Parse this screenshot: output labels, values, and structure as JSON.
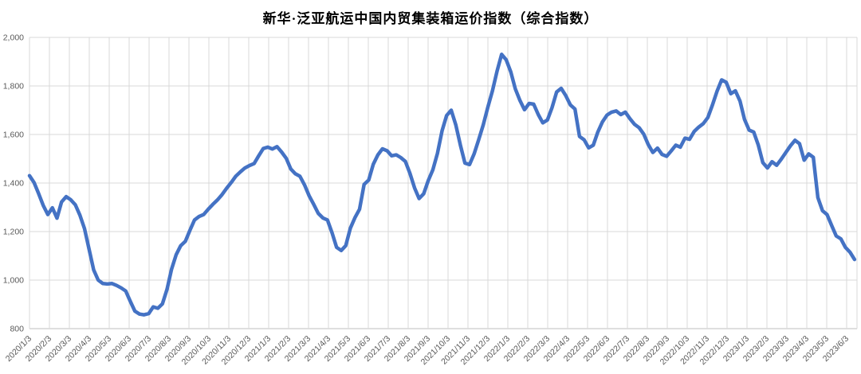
{
  "title": "新华·泛亚航运中国内贸集装箱运价指数（综合指数）",
  "style": {
    "line_color": "#4472C4",
    "grid_color": "#d9d9d9",
    "axis_color": "#bfbfbf",
    "tick_label_color": "#595959",
    "background": "#ffffff"
  },
  "chart_data": {
    "type": "line",
    "title": "新华·泛亚航运中国内贸集装箱运价指数（综合指数）",
    "xlabel": "",
    "ylabel": "",
    "ylim": [
      800,
      2000
    ],
    "grid": true,
    "legend_position": "none",
    "y_axis": {
      "values": [
        800,
        1000,
        1200,
        1400,
        1600,
        1800,
        2000
      ],
      "labels": [
        "800",
        "1,000",
        "1,200",
        "1,400",
        "1,600",
        "1,800",
        "2,000"
      ]
    },
    "x_axis": {
      "start_date": "2020/1/3",
      "labels": [
        "2020/1/3",
        "2020/2/3",
        "2020/3/3",
        "2020/4/3",
        "2020/5/3",
        "2020/6/3",
        "2020/7/3",
        "2020/8/3",
        "2020/9/3",
        "2020/10/3",
        "2020/11/3",
        "2020/12/3",
        "2021/1/3",
        "2021/2/3",
        "2021/3/3",
        "2021/4/3",
        "2021/5/3",
        "2021/6/3",
        "2021/7/3",
        "2021/8/3",
        "2021/9/3",
        "2021/10/3",
        "2021/11/3",
        "2021/12/3",
        "2022/1/3",
        "2022/2/3",
        "2022/3/3",
        "2022/4/3",
        "2022/5/3",
        "2022/6/3",
        "2022/7/3",
        "2022/8/3",
        "2022/9/3",
        "2022/10/3",
        "2022/11/3",
        "2022/12/3",
        "2023/1/3",
        "2023/2/3",
        "2023/3/3",
        "2023/4/3",
        "2023/5/3",
        "2023/6/3"
      ]
    },
    "series": [
      {
        "name": "综合指数",
        "color": "#4472C4",
        "points": [
          [
            "2020/1/3",
            1430
          ],
          [
            "2020/1/10",
            1402
          ],
          [
            "2020/1/17",
            1356
          ],
          [
            "2020/1/24",
            1308
          ],
          [
            "2020/1/31",
            1270
          ],
          [
            "2020/2/7",
            1298
          ],
          [
            "2020/2/14",
            1255
          ],
          [
            "2020/2/21",
            1322
          ],
          [
            "2020/2/28",
            1344
          ],
          [
            "2020/3/6",
            1331
          ],
          [
            "2020/3/13",
            1310
          ],
          [
            "2020/3/20",
            1268
          ],
          [
            "2020/3/27",
            1212
          ],
          [
            "2020/4/3",
            1128
          ],
          [
            "2020/4/10",
            1042
          ],
          [
            "2020/4/17",
            1000
          ],
          [
            "2020/4/24",
            986
          ],
          [
            "2020/5/1",
            984
          ],
          [
            "2020/5/8",
            986
          ],
          [
            "2020/5/15",
            978
          ],
          [
            "2020/5/22",
            968
          ],
          [
            "2020/5/29",
            955
          ],
          [
            "2020/6/5",
            912
          ],
          [
            "2020/6/12",
            872
          ],
          [
            "2020/6/19",
            860
          ],
          [
            "2020/6/26",
            857
          ],
          [
            "2020/7/3",
            862
          ],
          [
            "2020/7/10",
            890
          ],
          [
            "2020/7/17",
            884
          ],
          [
            "2020/7/24",
            902
          ],
          [
            "2020/7/31",
            962
          ],
          [
            "2020/8/7",
            1045
          ],
          [
            "2020/8/14",
            1105
          ],
          [
            "2020/8/21",
            1142
          ],
          [
            "2020/8/28",
            1160
          ],
          [
            "2020/9/4",
            1205
          ],
          [
            "2020/9/11",
            1248
          ],
          [
            "2020/9/18",
            1262
          ],
          [
            "2020/9/25",
            1270
          ],
          [
            "2020/10/2",
            1292
          ],
          [
            "2020/10/9",
            1312
          ],
          [
            "2020/10/16",
            1330
          ],
          [
            "2020/10/23",
            1352
          ],
          [
            "2020/10/30",
            1378
          ],
          [
            "2020/11/6",
            1402
          ],
          [
            "2020/11/13",
            1428
          ],
          [
            "2020/11/20",
            1446
          ],
          [
            "2020/11/27",
            1462
          ],
          [
            "2020/12/4",
            1472
          ],
          [
            "2020/12/11",
            1480
          ],
          [
            "2020/12/18",
            1512
          ],
          [
            "2020/12/25",
            1542
          ],
          [
            "2021/1/1",
            1548
          ],
          [
            "2021/1/8",
            1540
          ],
          [
            "2021/1/15",
            1550
          ],
          [
            "2021/1/22",
            1528
          ],
          [
            "2021/1/29",
            1502
          ],
          [
            "2021/2/5",
            1458
          ],
          [
            "2021/2/12",
            1438
          ],
          [
            "2021/2/19",
            1428
          ],
          [
            "2021/2/26",
            1392
          ],
          [
            "2021/3/5",
            1348
          ],
          [
            "2021/3/12",
            1312
          ],
          [
            "2021/3/19",
            1275
          ],
          [
            "2021/3/26",
            1256
          ],
          [
            "2021/4/2",
            1248
          ],
          [
            "2021/4/9",
            1195
          ],
          [
            "2021/4/16",
            1135
          ],
          [
            "2021/4/23",
            1122
          ],
          [
            "2021/4/30",
            1142
          ],
          [
            "2021/5/7",
            1214
          ],
          [
            "2021/5/14",
            1257
          ],
          [
            "2021/5/21",
            1292
          ],
          [
            "2021/5/28",
            1394
          ],
          [
            "2021/6/4",
            1412
          ],
          [
            "2021/6/11",
            1477
          ],
          [
            "2021/6/18",
            1516
          ],
          [
            "2021/6/25",
            1541
          ],
          [
            "2021/7/2",
            1533
          ],
          [
            "2021/7/9",
            1512
          ],
          [
            "2021/7/16",
            1516
          ],
          [
            "2021/7/23",
            1505
          ],
          [
            "2021/7/30",
            1489
          ],
          [
            "2021/8/6",
            1440
          ],
          [
            "2021/8/13",
            1380
          ],
          [
            "2021/8/20",
            1336
          ],
          [
            "2021/8/27",
            1356
          ],
          [
            "2021/9/3",
            1410
          ],
          [
            "2021/9/10",
            1455
          ],
          [
            "2021/9/17",
            1522
          ],
          [
            "2021/9/24",
            1615
          ],
          [
            "2021/10/1",
            1678
          ],
          [
            "2021/10/8",
            1700
          ],
          [
            "2021/10/15",
            1640
          ],
          [
            "2021/10/22",
            1556
          ],
          [
            "2021/10/29",
            1482
          ],
          [
            "2021/11/5",
            1476
          ],
          [
            "2021/11/12",
            1520
          ],
          [
            "2021/11/19",
            1578
          ],
          [
            "2021/11/26",
            1640
          ],
          [
            "2021/12/3",
            1712
          ],
          [
            "2021/12/10",
            1780
          ],
          [
            "2021/12/17",
            1860
          ],
          [
            "2021/12/24",
            1930
          ],
          [
            "2021/12/31",
            1908
          ],
          [
            "2022/1/7",
            1858
          ],
          [
            "2022/1/14",
            1788
          ],
          [
            "2022/1/21",
            1740
          ],
          [
            "2022/1/28",
            1702
          ],
          [
            "2022/2/4",
            1728
          ],
          [
            "2022/2/11",
            1725
          ],
          [
            "2022/2/18",
            1682
          ],
          [
            "2022/2/25",
            1648
          ],
          [
            "2022/3/4",
            1660
          ],
          [
            "2022/3/11",
            1710
          ],
          [
            "2022/3/18",
            1775
          ],
          [
            "2022/3/25",
            1790
          ],
          [
            "2022/4/1",
            1760
          ],
          [
            "2022/4/8",
            1722
          ],
          [
            "2022/4/15",
            1705
          ],
          [
            "2022/4/22",
            1592
          ],
          [
            "2022/4/29",
            1578
          ],
          [
            "2022/5/6",
            1545
          ],
          [
            "2022/5/13",
            1556
          ],
          [
            "2022/5/20",
            1610
          ],
          [
            "2022/5/27",
            1652
          ],
          [
            "2022/6/3",
            1680
          ],
          [
            "2022/6/10",
            1692
          ],
          [
            "2022/6/17",
            1697
          ],
          [
            "2022/6/24",
            1682
          ],
          [
            "2022/7/1",
            1692
          ],
          [
            "2022/7/8",
            1665
          ],
          [
            "2022/7/15",
            1642
          ],
          [
            "2022/7/22",
            1628
          ],
          [
            "2022/7/29",
            1602
          ],
          [
            "2022/8/5",
            1558
          ],
          [
            "2022/8/12",
            1526
          ],
          [
            "2022/8/19",
            1544
          ],
          [
            "2022/8/26",
            1518
          ],
          [
            "2022/9/2",
            1510
          ],
          [
            "2022/9/9",
            1532
          ],
          [
            "2022/9/16",
            1556
          ],
          [
            "2022/9/23",
            1548
          ],
          [
            "2022/9/30",
            1585
          ],
          [
            "2022/10/7",
            1580
          ],
          [
            "2022/10/14",
            1612
          ],
          [
            "2022/10/21",
            1630
          ],
          [
            "2022/10/28",
            1645
          ],
          [
            "2022/11/4",
            1670
          ],
          [
            "2022/11/11",
            1722
          ],
          [
            "2022/11/18",
            1778
          ],
          [
            "2022/11/25",
            1825
          ],
          [
            "2022/12/2",
            1815
          ],
          [
            "2022/12/9",
            1768
          ],
          [
            "2022/12/16",
            1780
          ],
          [
            "2022/12/23",
            1738
          ],
          [
            "2022/12/30",
            1662
          ],
          [
            "2023/1/6",
            1618
          ],
          [
            "2023/1/13",
            1610
          ],
          [
            "2023/1/20",
            1556
          ],
          [
            "2023/1/27",
            1484
          ],
          [
            "2023/2/3",
            1462
          ],
          [
            "2023/2/10",
            1488
          ],
          [
            "2023/2/17",
            1473
          ],
          [
            "2023/2/24",
            1498
          ],
          [
            "2023/3/3",
            1526
          ],
          [
            "2023/3/10",
            1553
          ],
          [
            "2023/3/17",
            1576
          ],
          [
            "2023/3/24",
            1562
          ],
          [
            "2023/3/31",
            1494
          ],
          [
            "2023/4/7",
            1520
          ],
          [
            "2023/4/14",
            1506
          ],
          [
            "2023/4/21",
            1340
          ],
          [
            "2023/4/28",
            1286
          ],
          [
            "2023/5/5",
            1270
          ],
          [
            "2023/5/12",
            1225
          ],
          [
            "2023/5/19",
            1182
          ],
          [
            "2023/5/26",
            1170
          ],
          [
            "2023/6/2",
            1135
          ],
          [
            "2023/6/9",
            1115
          ],
          [
            "2023/6/16",
            1085
          ]
        ]
      }
    ]
  }
}
